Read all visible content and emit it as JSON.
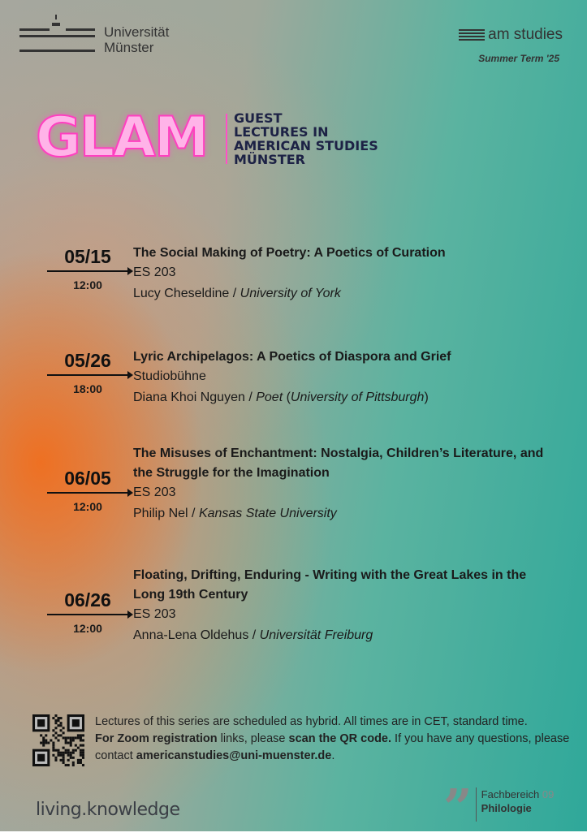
{
  "header": {
    "university_line1": "Universität",
    "university_line2": "Münster",
    "dept_logo": "am studies",
    "term": "Summer Term '25"
  },
  "series": {
    "logo": "GLAM",
    "subtitle": [
      "GUEST",
      "LECTURES IN",
      "AMERICAN STUDIES",
      "MÜNSTER"
    ]
  },
  "events": [
    {
      "date": "05/15",
      "time": "12:00",
      "title": "The Social Making of Poetry: A Poetics of Curation",
      "room": "ES 203",
      "speaker": "Lucy Cheseldine",
      "affiliation": "University of York",
      "affiliation_extra": ""
    },
    {
      "date": "05/26",
      "time": "18:00",
      "title": "Lyric Archipelagos: A Poetics of Diaspora and Grief",
      "room": "Studiobühne",
      "speaker": "Diana Khoi Nguyen",
      "affiliation": "Poet",
      "affiliation_extra": "University of Pittsburgh"
    },
    {
      "date": "06/05",
      "time": "12:00",
      "title": "The Misuses of Enchantment: Nostalgia, Children’s Literature, and the Struggle for the Imagination",
      "room": "ES 203",
      "speaker": "Philip Nel",
      "affiliation": "Kansas State University",
      "affiliation_extra": ""
    },
    {
      "date": "06/26",
      "time": "12:00",
      "title": "Floating, Drifting, Enduring - Writing with the Great Lakes in the Long 19th Century",
      "room": "ES 203",
      "speaker": "Anna-Lena Oldehus",
      "affiliation": "Universität Freiburg",
      "affiliation_extra": ""
    }
  ],
  "footer": {
    "line1": "Lectures of this series are scheduled as hybrid. All times are in CET, standard time.",
    "zoom_bold": "For Zoom registration",
    "zoom_mid": " links, please ",
    "scan_bold": "scan the QR code.",
    "line2_end": " If you have any questions, please contact ",
    "email": "americanstudies@uni-muenster.de",
    "period": ".",
    "slogan": "living.knowledge",
    "faculty_line1": "Fachbereich",
    "faculty_num": "09",
    "faculty_line2": "Philologie"
  },
  "colors": {
    "neon": "#ff4fc8",
    "teal": "#2fa89a",
    "orange": "#f06e1e",
    "navy": "#1d2245"
  }
}
